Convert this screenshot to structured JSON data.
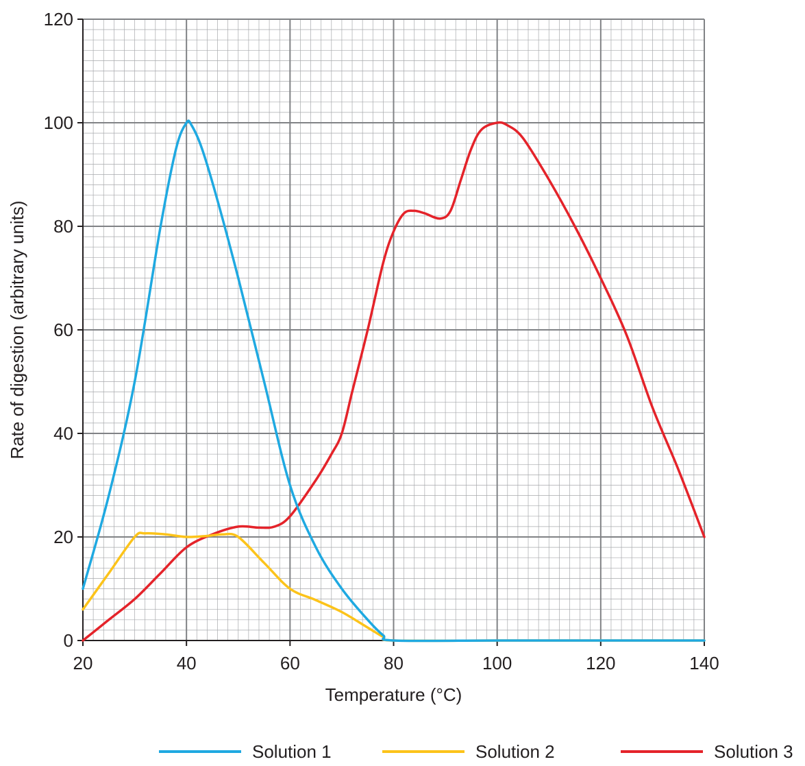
{
  "chart_data": {
    "type": "line",
    "title": "",
    "xlabel": "Temperature (°C)",
    "ylabel": "Rate of digestion (arbitrary units)",
    "xlim": [
      20,
      140
    ],
    "ylim": [
      0,
      120
    ],
    "x_ticks": [
      "20",
      "40",
      "60",
      "80",
      "100",
      "120",
      "140"
    ],
    "y_ticks": [
      "0",
      "20",
      "40",
      "60",
      "80",
      "100",
      "120"
    ],
    "grid": true,
    "legend_position": "bottom",
    "series": [
      {
        "name": "Solution 1",
        "color": "#1fa9e1",
        "points": [
          [
            20,
            10
          ],
          [
            25,
            28
          ],
          [
            30,
            50
          ],
          [
            35,
            80
          ],
          [
            38,
            95
          ],
          [
            40,
            100
          ],
          [
            41,
            99.5
          ],
          [
            43,
            95
          ],
          [
            46,
            85
          ],
          [
            50,
            70
          ],
          [
            55,
            50
          ],
          [
            60,
            30
          ],
          [
            65,
            18
          ],
          [
            70,
            10
          ],
          [
            75,
            4
          ],
          [
            78,
            1
          ],
          [
            80,
            0
          ],
          [
            100,
            0
          ],
          [
            120,
            0
          ],
          [
            140,
            0
          ]
        ]
      },
      {
        "name": "Solution 2",
        "color": "#fcc31a",
        "points": [
          [
            20,
            6
          ],
          [
            25,
            13
          ],
          [
            30,
            20
          ],
          [
            32,
            20.7
          ],
          [
            36,
            20.5
          ],
          [
            40,
            20
          ],
          [
            44,
            20.2
          ],
          [
            47,
            20.5
          ],
          [
            50,
            20
          ],
          [
            55,
            15
          ],
          [
            60,
            10
          ],
          [
            65,
            7.8
          ],
          [
            70,
            5.5
          ],
          [
            75,
            2.5
          ],
          [
            78,
            0.7
          ],
          [
            80,
            0
          ],
          [
            100,
            0
          ],
          [
            120,
            0
          ],
          [
            140,
            0
          ]
        ]
      },
      {
        "name": "Solution 3",
        "color": "#e4232a",
        "points": [
          [
            20,
            0
          ],
          [
            25,
            4
          ],
          [
            30,
            8
          ],
          [
            35,
            13
          ],
          [
            40,
            18
          ],
          [
            45,
            20.5
          ],
          [
            50,
            22
          ],
          [
            54,
            21.8
          ],
          [
            57,
            22
          ],
          [
            60,
            24
          ],
          [
            65,
            31
          ],
          [
            68,
            36
          ],
          [
            70,
            40
          ],
          [
            72,
            48
          ],
          [
            75,
            60
          ],
          [
            78,
            73
          ],
          [
            80,
            79
          ],
          [
            82,
            82.5
          ],
          [
            84,
            83
          ],
          [
            86,
            82.5
          ],
          [
            89,
            81.5
          ],
          [
            91,
            83
          ],
          [
            93,
            89
          ],
          [
            95,
            95
          ],
          [
            97,
            98.7
          ],
          [
            100,
            100
          ],
          [
            102,
            99.5
          ],
          [
            105,
            97
          ],
          [
            110,
            89
          ],
          [
            115,
            80
          ],
          [
            120,
            70
          ],
          [
            125,
            59
          ],
          [
            130,
            45
          ],
          [
            135,
            33
          ],
          [
            140,
            20
          ]
        ]
      }
    ]
  }
}
